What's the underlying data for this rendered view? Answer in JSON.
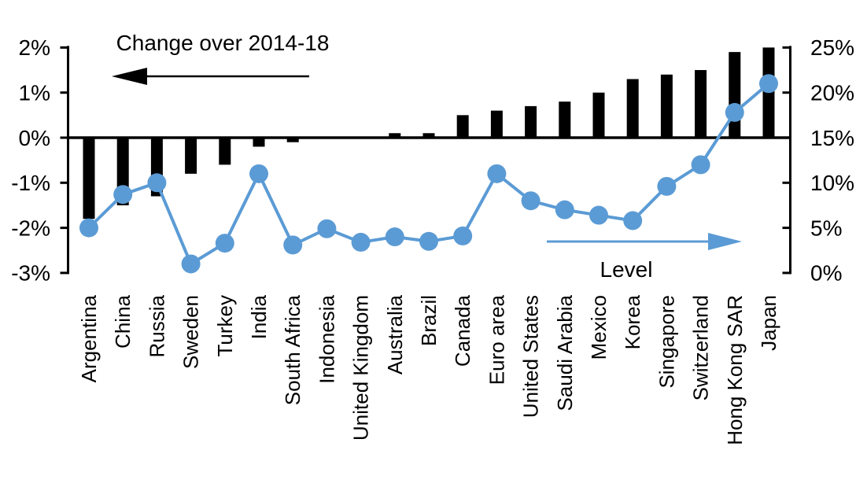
{
  "chart_data": {
    "type": "combo-bar-line",
    "categories": [
      "Argentina",
      "China",
      "Russia",
      "Sweden",
      "Turkey",
      "India",
      "South Africa",
      "Indonesia",
      "United Kingdom",
      "Australia",
      "Brazil",
      "Canada",
      "Euro area",
      "United States",
      "Saudi Arabia",
      "Mexico",
      "Korea",
      "Singapore",
      "Switzerland",
      "Hong Kong SAR",
      "Japan"
    ],
    "series": [
      {
        "name": "Change over 2014-18",
        "type": "bar",
        "axis": "left",
        "color": "#000000",
        "values": [
          -1.8,
          -1.5,
          -1.3,
          -0.8,
          -0.6,
          -0.2,
          -0.1,
          0,
          0,
          0.1,
          0.1,
          0.5,
          0.6,
          0.7,
          0.8,
          1.0,
          1.3,
          1.4,
          1.5,
          1.9,
          2.0
        ]
      },
      {
        "name": "Level",
        "type": "line",
        "axis": "right",
        "color": "#5B9BD5",
        "values": [
          5.0,
          8.7,
          10.0,
          1.0,
          3.3,
          11.0,
          3.1,
          4.9,
          3.4,
          4.0,
          3.5,
          4.1,
          11.0,
          8.0,
          7.0,
          6.4,
          5.8,
          9.6,
          12.0,
          17.8,
          21.0
        ]
      }
    ],
    "left_axis": {
      "min": -3,
      "max": 2,
      "tick_labels": [
        "2%",
        "1%",
        "0%",
        "-1%",
        "-2%",
        "-3%"
      ]
    },
    "right_axis": {
      "min": 0,
      "max": 25,
      "tick_labels": [
        "25%",
        "20%",
        "15%",
        "10%",
        "5%",
        "0%"
      ]
    },
    "annotations": {
      "bar_series_label": "Change over 2014-18",
      "line_series_label": "Level"
    },
    "layout_hints": {
      "grid": false,
      "zero_line": true,
      "category_labels_rotated": true
    }
  },
  "colors": {
    "bar": "#000000",
    "line": "#5B9BD5",
    "axis": "#000000",
    "background": "#ffffff"
  }
}
